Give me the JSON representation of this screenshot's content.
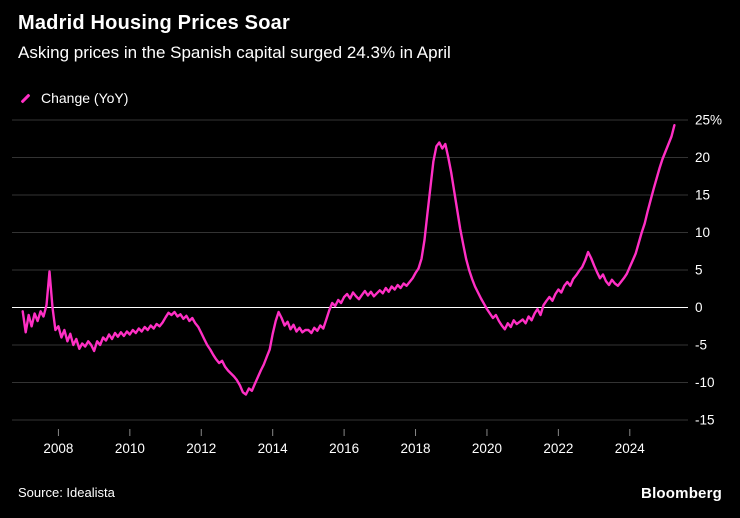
{
  "header": {
    "title": "Madrid Housing Prices Soar",
    "subtitle": "Asking prices in the Spanish capital surged 24.3% in April"
  },
  "legend": {
    "label": "Change (YoY)"
  },
  "source": {
    "text": "Source: Idealista"
  },
  "brand": {
    "text": "Bloomberg"
  },
  "chart_data": {
    "type": "line",
    "title": "Madrid Housing Prices Soar",
    "subtitle": "Asking prices in the Spanish capital surged 24.3% in April",
    "xlabel": "",
    "ylabel": "Change (YoY), %",
    "ylim": [
      -15,
      25
    ],
    "xlim": [
      2006.7,
      2025.63
    ],
    "y_ticks": [
      25,
      20,
      15,
      10,
      5,
      0,
      -5,
      -10,
      -15
    ],
    "y_tick_labels": [
      "25%",
      "20",
      "15",
      "10",
      "5",
      "0",
      "-5",
      "-10",
      "-15"
    ],
    "x_ticks": [
      2008,
      2010,
      2012,
      2014,
      2016,
      2018,
      2020,
      2022,
      2024
    ],
    "grid": "horizontal",
    "legend_position": "top-left",
    "line_color": "#ff2fc4",
    "grid_color": "#333333",
    "zero_line_color": "#ffffff",
    "tick_color": "#888888",
    "axis_text_color": "#ffffff",
    "background": "#000000",
    "series": [
      {
        "name": "Change (YoY)",
        "unit": "%",
        "x_start": 2007.0,
        "x_step": 0.0833333,
        "values": [
          -0.5,
          -3.3,
          -1.0,
          -2.5,
          -0.8,
          -1.8,
          -0.5,
          -1.2,
          0.3,
          4.8,
          0.0,
          -3.0,
          -2.5,
          -4.0,
          -3.0,
          -4.5,
          -3.5,
          -5.0,
          -4.2,
          -5.5,
          -4.8,
          -5.2,
          -4.5,
          -5.0,
          -5.8,
          -4.5,
          -5.0,
          -4.0,
          -4.4,
          -3.6,
          -4.2,
          -3.4,
          -3.9,
          -3.3,
          -3.8,
          -3.2,
          -3.6,
          -3.0,
          -3.4,
          -2.8,
          -3.2,
          -2.6,
          -3.0,
          -2.4,
          -2.8,
          -2.2,
          -2.5,
          -2.0,
          -1.3,
          -0.7,
          -1.0,
          -0.6,
          -1.2,
          -0.9,
          -1.5,
          -1.1,
          -1.8,
          -1.4,
          -2.1,
          -2.6,
          -3.4,
          -4.2,
          -5.0,
          -5.6,
          -6.3,
          -6.9,
          -7.4,
          -7.1,
          -7.9,
          -8.4,
          -8.8,
          -9.2,
          -9.7,
          -10.4,
          -11.3,
          -11.6,
          -10.8,
          -11.1,
          -10.2,
          -9.3,
          -8.4,
          -7.6,
          -6.6,
          -5.6,
          -3.5,
          -1.8,
          -0.6,
          -1.4,
          -2.4,
          -1.9,
          -2.9,
          -2.3,
          -3.2,
          -2.7,
          -3.3,
          -3.0,
          -3.0,
          -3.4,
          -2.7,
          -3.1,
          -2.4,
          -2.8,
          -1.6,
          -0.4,
          0.6,
          0.2,
          1.0,
          0.6,
          1.4,
          1.8,
          1.2,
          2.0,
          1.5,
          1.1,
          1.7,
          2.2,
          1.6,
          2.1,
          1.5,
          1.9,
          2.3,
          1.9,
          2.6,
          2.1,
          2.8,
          2.4,
          3.0,
          2.6,
          3.2,
          2.9,
          3.4,
          3.9,
          4.6,
          5.2,
          6.5,
          9.0,
          12.5,
          16.0,
          19.5,
          21.5,
          22.0,
          21.2,
          21.8,
          20.0,
          18.0,
          15.5,
          13.0,
          10.5,
          8.5,
          6.5,
          5.0,
          3.8,
          2.8,
          2.0,
          1.2,
          0.5,
          -0.2,
          -0.8,
          -1.4,
          -1.0,
          -1.8,
          -2.4,
          -2.9,
          -2.1,
          -2.6,
          -1.7,
          -2.2,
          -1.9,
          -1.6,
          -2.1,
          -1.2,
          -1.7,
          -0.8,
          -0.2,
          -1.0,
          0.3,
          0.9,
          1.4,
          0.9,
          1.8,
          2.4,
          2.0,
          2.9,
          3.4,
          2.9,
          3.8,
          4.3,
          4.9,
          5.4,
          6.3,
          7.4,
          6.6,
          5.6,
          4.7,
          3.9,
          4.4,
          3.5,
          3.0,
          3.7,
          3.2,
          2.9,
          3.4,
          3.9,
          4.5,
          5.4,
          6.3,
          7.2,
          8.6,
          10.0,
          11.2,
          12.8,
          14.3,
          15.8,
          17.2,
          18.6,
          19.8,
          20.8,
          21.8,
          22.8,
          24.3
        ]
      }
    ]
  }
}
